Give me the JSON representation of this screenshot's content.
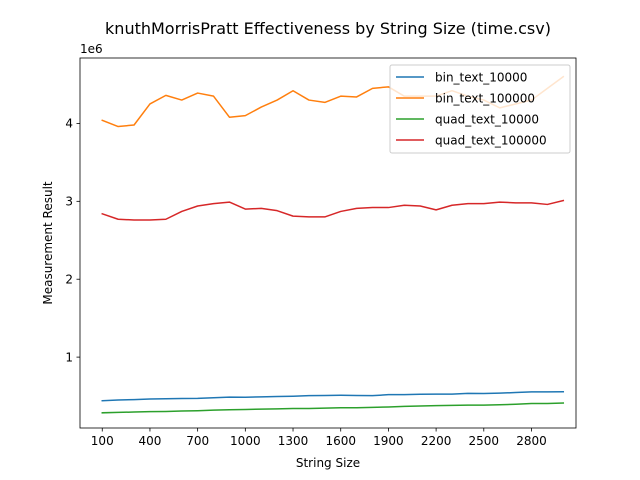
{
  "chart_data": {
    "type": "line",
    "title": "knuthMorrisPratt Effectiveness by String Size (time.csv)",
    "xlabel": "String Size",
    "ylabel": "Measurement Result",
    "y_offset_label": "1e6",
    "x_ticks": [
      100,
      400,
      700,
      1000,
      1300,
      1600,
      1900,
      2200,
      2500,
      2800
    ],
    "y_ticks": [
      1,
      2,
      3,
      4
    ],
    "y_scale": 1000000,
    "xlim": [
      -40,
      3080
    ],
    "ylim": [
      90000,
      4840000
    ],
    "grid": false,
    "legend_position": "top-right",
    "x": [
      100,
      200,
      300,
      400,
      500,
      600,
      700,
      800,
      900,
      1000,
      1100,
      1200,
      1300,
      1400,
      1500,
      1600,
      1700,
      1800,
      1900,
      2000,
      2100,
      2200,
      2300,
      2400,
      2500,
      2600,
      2700,
      2800,
      2900,
      3000
    ],
    "series": [
      {
        "name": "bin_text_10000",
        "color": "#1f77b4",
        "values": [
          440000,
          450000,
          455000,
          462000,
          465000,
          468000,
          470000,
          478000,
          487000,
          485000,
          490000,
          495000,
          498000,
          505000,
          508000,
          510000,
          508000,
          505000,
          518000,
          518000,
          523000,
          525000,
          525000,
          535000,
          533000,
          538000,
          545000,
          553000,
          553000,
          555000
        ]
      },
      {
        "name": "bin_text_100000",
        "color": "#ff7f0e",
        "values": [
          4040000,
          3960000,
          3980000,
          4250000,
          4360000,
          4300000,
          4390000,
          4350000,
          4080000,
          4100000,
          4210000,
          4300000,
          4420000,
          4300000,
          4270000,
          4350000,
          4340000,
          4450000,
          4470000,
          4350000,
          4350000,
          4350000,
          4420000,
          4350000,
          4300000,
          4200000,
          4250000,
          4300000,
          4450000,
          4600000
        ]
      },
      {
        "name": "quad_text_10000",
        "color": "#2ca02c",
        "values": [
          285000,
          290000,
          295000,
          300000,
          302000,
          308000,
          312000,
          320000,
          325000,
          328000,
          333000,
          335000,
          340000,
          340000,
          345000,
          350000,
          350000,
          355000,
          360000,
          368000,
          372000,
          378000,
          380000,
          383000,
          383000,
          388000,
          395000,
          405000,
          405000,
          410000
        ]
      },
      {
        "name": "quad_text_100000",
        "color": "#d62728",
        "values": [
          2840000,
          2770000,
          2760000,
          2760000,
          2770000,
          2870000,
          2940000,
          2970000,
          2990000,
          2900000,
          2910000,
          2880000,
          2810000,
          2800000,
          2800000,
          2870000,
          2910000,
          2920000,
          2920000,
          2950000,
          2940000,
          2890000,
          2950000,
          2970000,
          2970000,
          2990000,
          2980000,
          2980000,
          2960000,
          3010000
        ]
      }
    ]
  }
}
